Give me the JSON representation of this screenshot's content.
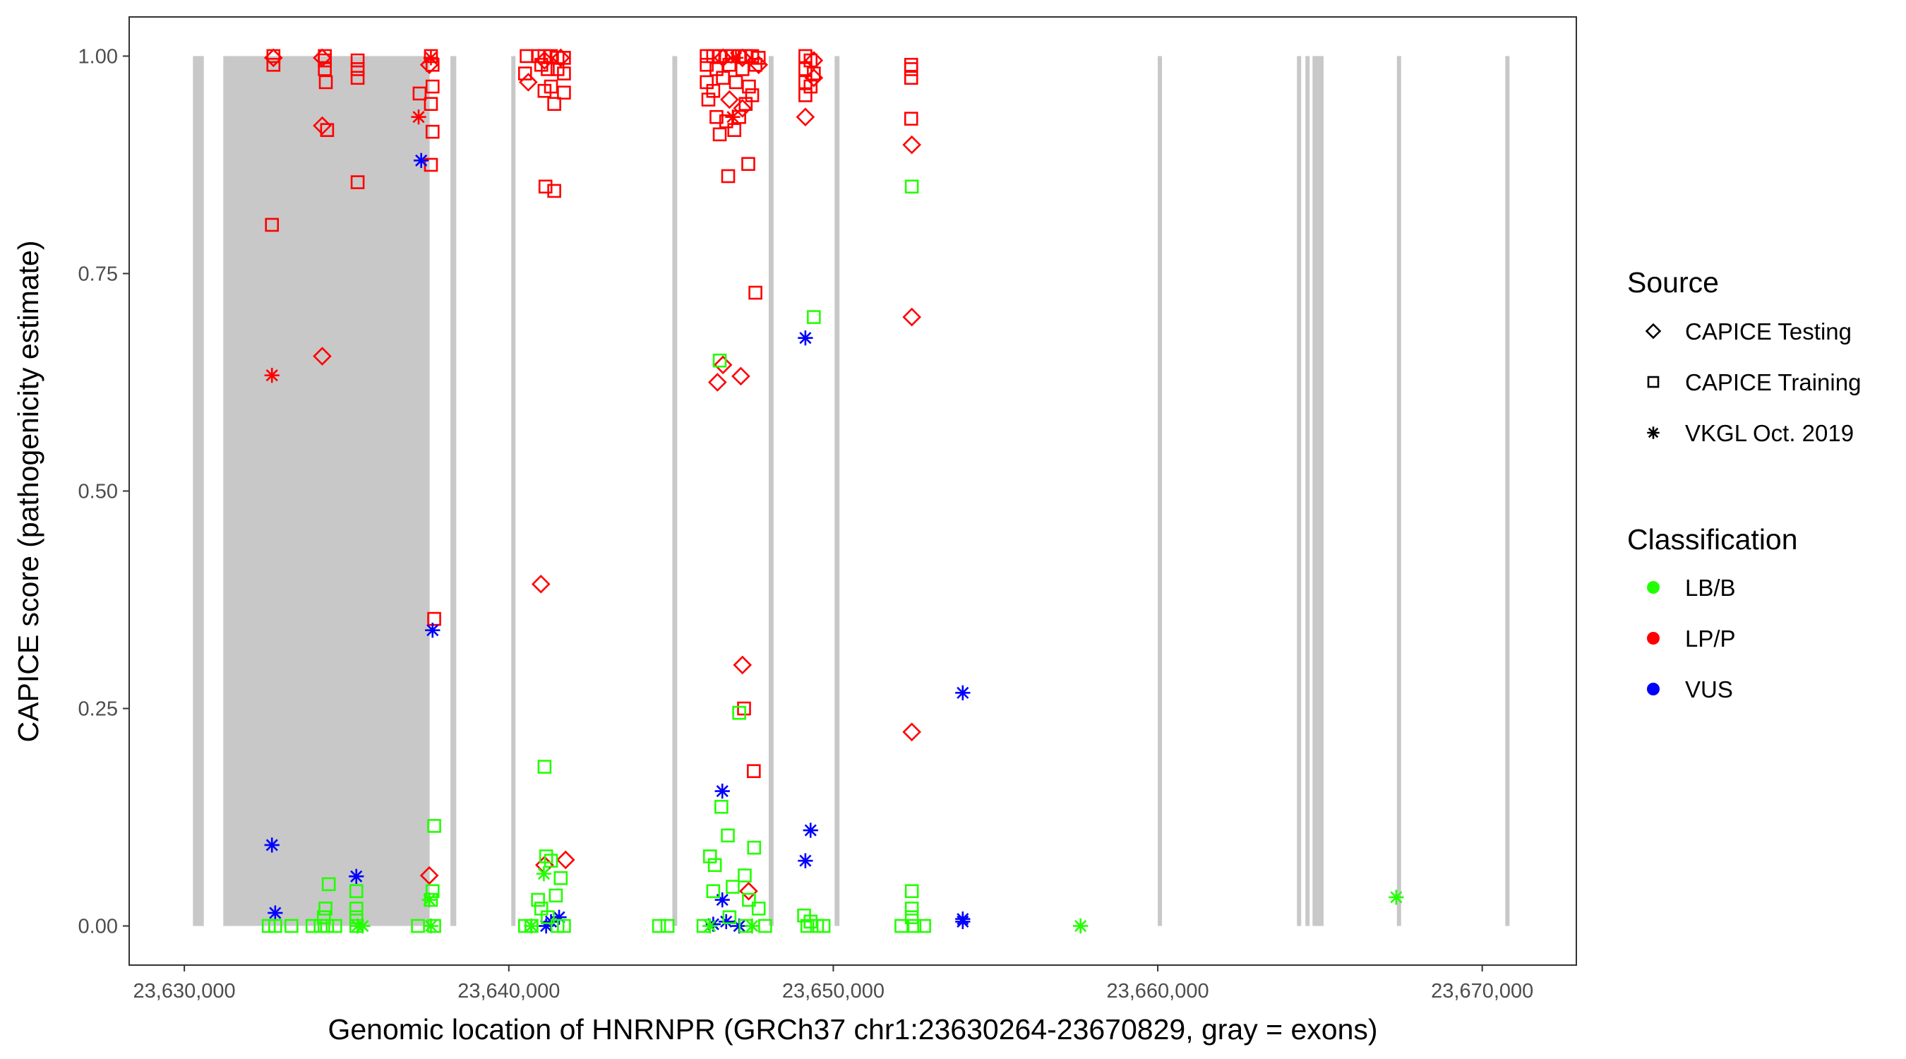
{
  "chart_data": {
    "type": "scatter",
    "xlabel": "Genomic location of HNRNPR (GRCh37 chr1:23630264-23670829, gray = exons)",
    "ylabel": "CAPICE score (pathogenicity estimate)",
    "xlim": [
      23628300,
      23672900
    ],
    "ylim": [
      -0.045,
      1.045
    ],
    "x_ticks": [
      23630000,
      23640000,
      23650000,
      23660000,
      23670000
    ],
    "x_tick_labels": [
      "23,630,000",
      "23,640,000",
      "23,650,000",
      "23,660,000",
      "23,670,000"
    ],
    "y_ticks": [
      0,
      0.25,
      0.5,
      0.75,
      1.0
    ],
    "y_tick_labels": [
      "0.00",
      "0.25",
      "0.50",
      "0.75",
      "1.00"
    ],
    "grid": false,
    "exons": [
      [
        23630264,
        23630600
      ],
      [
        23631200,
        23637560
      ],
      [
        23638200,
        23638380
      ],
      [
        23640075,
        23640190
      ],
      [
        23645040,
        23645190
      ],
      [
        23648010,
        23648160
      ],
      [
        23650040,
        23650190
      ],
      [
        23660000,
        23660110
      ],
      [
        23664290,
        23664360
      ],
      [
        23664550,
        23664620
      ],
      [
        23664770,
        23665110
      ],
      [
        23667370,
        23667480
      ],
      [
        23670710,
        23670829
      ]
    ],
    "exon_color": "#c8c8c8",
    "legend": {
      "placement": "right",
      "source_title": "Source",
      "source_items": [
        {
          "label": "CAPICE Testing",
          "shape": "diamond"
        },
        {
          "label": "CAPICE Training",
          "shape": "square"
        },
        {
          "label": "VKGL Oct. 2019",
          "shape": "asterisk"
        }
      ],
      "class_title": "Classification",
      "class_items": [
        {
          "label": "LB/B",
          "color": "#22ff00"
        },
        {
          "label": "LP/P",
          "color": "#ff0000"
        },
        {
          "label": "VUS",
          "color": "#0000ff"
        }
      ]
    },
    "series": [
      {
        "source": "CAPICE Training",
        "classification": "LP/P",
        "points": [
          [
            23632745,
            1.0
          ],
          [
            23632745,
            0.99
          ],
          [
            23632700,
            0.806
          ],
          [
            23634330,
            1.0
          ],
          [
            23634330,
            0.995
          ],
          [
            23634330,
            0.985
          ],
          [
            23634360,
            0.97
          ],
          [
            23634400,
            0.915
          ],
          [
            23635340,
            0.995
          ],
          [
            23635340,
            0.985
          ],
          [
            23635340,
            0.975
          ],
          [
            23635340,
            0.855
          ],
          [
            23637600,
            1.0
          ],
          [
            23637650,
            0.99
          ],
          [
            23637250,
            0.957
          ],
          [
            23637650,
            0.965
          ],
          [
            23637600,
            0.945
          ],
          [
            23637650,
            0.913
          ],
          [
            23637600,
            0.875
          ],
          [
            23637700,
            0.353
          ],
          [
            23640550,
            1.0
          ],
          [
            23640500,
            0.98
          ],
          [
            23640900,
            1.0
          ],
          [
            23641100,
            1.0
          ],
          [
            23641300,
            1.0
          ],
          [
            23641500,
            0.998
          ],
          [
            23641700,
            0.998
          ],
          [
            23641000,
            0.99
          ],
          [
            23641200,
            0.985
          ],
          [
            23641500,
            0.985
          ],
          [
            23641700,
            0.98
          ],
          [
            23641100,
            0.96
          ],
          [
            23641300,
            0.965
          ],
          [
            23641700,
            0.958
          ],
          [
            23641400,
            0.945
          ],
          [
            23641130,
            0.85
          ],
          [
            23641400,
            0.845
          ],
          [
            23646100,
            1.0
          ],
          [
            23646300,
            1.0
          ],
          [
            23646500,
            1.0
          ],
          [
            23646700,
            1.0
          ],
          [
            23646900,
            1.0
          ],
          [
            23647100,
            1.0
          ],
          [
            23647300,
            1.0
          ],
          [
            23647500,
            1.0
          ],
          [
            23647700,
            0.998
          ],
          [
            23646100,
            0.99
          ],
          [
            23646400,
            0.985
          ],
          [
            23646800,
            0.99
          ],
          [
            23647200,
            0.985
          ],
          [
            23647600,
            0.99
          ],
          [
            23646100,
            0.97
          ],
          [
            23646300,
            0.96
          ],
          [
            23646600,
            0.975
          ],
          [
            23647000,
            0.97
          ],
          [
            23647400,
            0.965
          ],
          [
            23647500,
            0.955
          ],
          [
            23646150,
            0.95
          ],
          [
            23646400,
            0.93
          ],
          [
            23646700,
            0.925
          ],
          [
            23647100,
            0.93
          ],
          [
            23647300,
            0.945
          ],
          [
            23646500,
            0.91
          ],
          [
            23646950,
            0.915
          ],
          [
            23647380,
            0.876
          ],
          [
            23646760,
            0.862
          ],
          [
            23647600,
            0.728
          ],
          [
            23647250,
            0.25
          ],
          [
            23647550,
            0.178
          ],
          [
            23649140,
            1.0
          ],
          [
            23649300,
            0.995
          ],
          [
            23649140,
            0.985
          ],
          [
            23649400,
            0.98
          ],
          [
            23649140,
            0.97
          ],
          [
            23649300,
            0.965
          ],
          [
            23649140,
            0.955
          ],
          [
            23652400,
            0.99
          ],
          [
            23652400,
            0.985
          ],
          [
            23652400,
            0.975
          ],
          [
            23652400,
            0.928
          ]
        ]
      },
      {
        "source": "CAPICE Testing",
        "classification": "LP/P",
        "points": [
          [
            23632745,
            0.998
          ],
          [
            23634250,
            0.998
          ],
          [
            23634250,
            0.92
          ],
          [
            23634250,
            0.655
          ],
          [
            23637550,
            0.99
          ],
          [
            23637550,
            0.058
          ],
          [
            23640600,
            0.97
          ],
          [
            23641100,
            0.995
          ],
          [
            23641600,
            0.998
          ],
          [
            23640990,
            0.393
          ],
          [
            23641750,
            0.076
          ],
          [
            23641100,
            0.07
          ],
          [
            23646600,
            0.998
          ],
          [
            23647200,
            0.998
          ],
          [
            23647700,
            0.99
          ],
          [
            23646800,
            0.95
          ],
          [
            23647200,
            0.94
          ],
          [
            23646600,
            0.645
          ],
          [
            23646430,
            0.625
          ],
          [
            23647150,
            0.632
          ],
          [
            23647200,
            0.3
          ],
          [
            23647390,
            0.04
          ],
          [
            23649400,
            0.995
          ],
          [
            23649140,
            0.93
          ],
          [
            23649400,
            0.975
          ],
          [
            23652420,
            0.898
          ],
          [
            23652420,
            0.7
          ],
          [
            23652420,
            0.223
          ]
        ]
      },
      {
        "source": "VKGL Oct. 2019",
        "classification": "LP/P",
        "points": [
          [
            23632700,
            0.633
          ],
          [
            23637220,
            0.93
          ],
          [
            23637600,
            0.998
          ],
          [
            23647000,
            0.998
          ],
          [
            23646900,
            0.93
          ]
        ]
      },
      {
        "source": "VKGL Oct. 2019",
        "classification": "VUS",
        "points": [
          [
            23632700,
            0.093
          ],
          [
            23632800,
            0.015
          ],
          [
            23635300,
            0.057
          ],
          [
            23637300,
            0.88
          ],
          [
            23637650,
            0.34
          ],
          [
            23641150,
            0.0
          ],
          [
            23641300,
            0.005
          ],
          [
            23641550,
            0.01
          ],
          [
            23646580,
            0.155
          ],
          [
            23646580,
            0.03
          ],
          [
            23646700,
            0.005
          ],
          [
            23647100,
            0.0
          ],
          [
            23646300,
            0.002
          ],
          [
            23649140,
            0.676
          ],
          [
            23649300,
            0.11
          ],
          [
            23649140,
            0.075
          ],
          [
            23653990,
            0.268
          ],
          [
            23653990,
            0.008
          ],
          [
            23653990,
            0.005
          ]
        ]
      },
      {
        "source": "VKGL Oct. 2019",
        "classification": "LB/B",
        "points": [
          [
            23635340,
            0.0
          ],
          [
            23635500,
            0.0
          ],
          [
            23637550,
            0.03
          ],
          [
            23637600,
            0.0
          ],
          [
            23641080,
            0.06
          ],
          [
            23640700,
            0.0
          ],
          [
            23646200,
            0.0
          ],
          [
            23647500,
            0.0
          ],
          [
            23657620,
            0.0
          ],
          [
            23667350,
            0.033
          ]
        ]
      },
      {
        "source": "CAPICE Training",
        "classification": "LB/B",
        "points": [
          [
            23632600,
            0
          ],
          [
            23632800,
            0
          ],
          [
            23633300,
            0
          ],
          [
            23633950,
            0
          ],
          [
            23634200,
            0
          ],
          [
            23634400,
            0
          ],
          [
            23634450,
            0.048
          ],
          [
            23634350,
            0.02
          ],
          [
            23634300,
            0.01
          ],
          [
            23634650,
            0
          ],
          [
            23635300,
            0.04
          ],
          [
            23635300,
            0.02
          ],
          [
            23635300,
            0.01
          ],
          [
            23635300,
            0
          ],
          [
            23637200,
            0
          ],
          [
            23637700,
            0.115
          ],
          [
            23637650,
            0.04
          ],
          [
            23637600,
            0.03
          ],
          [
            23637700,
            0
          ],
          [
            23640500,
            0
          ],
          [
            23640700,
            0
          ],
          [
            23640900,
            0.03
          ],
          [
            23641000,
            0.02
          ],
          [
            23641100,
            0.183
          ],
          [
            23641150,
            0.08
          ],
          [
            23641300,
            0.075
          ],
          [
            23641600,
            0.055
          ],
          [
            23641450,
            0.035
          ],
          [
            23641200,
            0.01
          ],
          [
            23641700,
            0
          ],
          [
            23641500,
            0
          ],
          [
            23644630,
            0
          ],
          [
            23644890,
            0
          ],
          [
            23646000,
            0
          ],
          [
            23646200,
            0.08
          ],
          [
            23646350,
            0.07
          ],
          [
            23646500,
            0.65
          ],
          [
            23646550,
            0.137
          ],
          [
            23646750,
            0.104
          ],
          [
            23647100,
            0.245
          ],
          [
            23647270,
            0.058
          ],
          [
            23647560,
            0.09
          ],
          [
            23646300,
            0.04
          ],
          [
            23646900,
            0.045
          ],
          [
            23647400,
            0.03
          ],
          [
            23647700,
            0.02
          ],
          [
            23647900,
            0
          ],
          [
            23646800,
            0.01
          ],
          [
            23647300,
            0
          ],
          [
            23649400,
            0.7
          ],
          [
            23649100,
            0.012
          ],
          [
            23649300,
            0.005
          ],
          [
            23649200,
            0
          ],
          [
            23649500,
            0
          ],
          [
            23649700,
            0
          ],
          [
            23652100,
            0
          ],
          [
            23652420,
            0.85
          ],
          [
            23652420,
            0.04
          ],
          [
            23652420,
            0.02
          ],
          [
            23652420,
            0.01
          ],
          [
            23652500,
            0
          ],
          [
            23652800,
            0
          ]
        ]
      }
    ]
  }
}
